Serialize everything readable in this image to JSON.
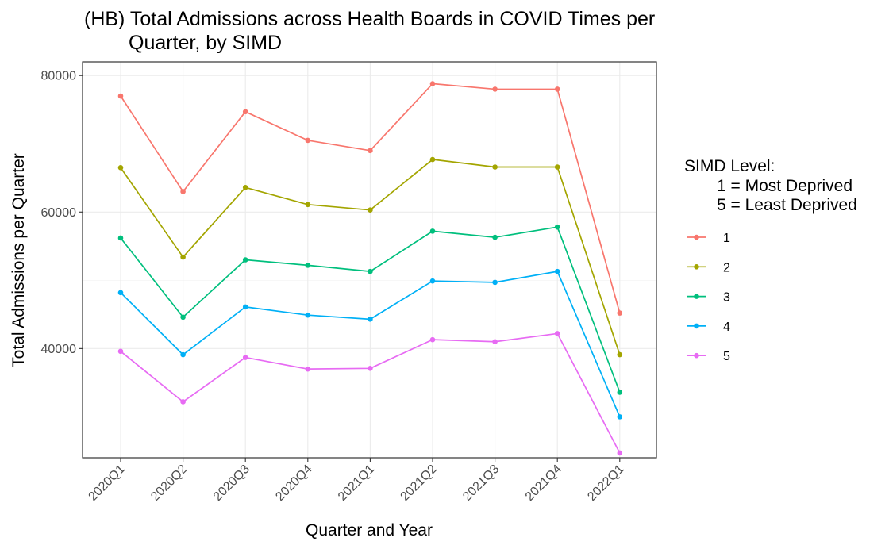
{
  "chart_data": {
    "type": "line",
    "title_line1": "(HB) Total Admissions across Health Boards in COVID Times per",
    "title_line2": "Quarter, by SIMD",
    "xlabel": "Quarter and Year",
    "ylabel": "Total Admissions per Quarter",
    "categories": [
      "2020Q1",
      "2020Q2",
      "2020Q3",
      "2020Q4",
      "2021Q1",
      "2021Q2",
      "2021Q3",
      "2021Q4",
      "2022Q1"
    ],
    "ylim": [
      24000,
      82000
    ],
    "yticks": [
      40000,
      60000,
      80000
    ],
    "ytick_labels": [
      "40000",
      "60000",
      "80000"
    ],
    "grid": true,
    "legend": {
      "position": "right",
      "title_line1": "SIMD Level:",
      "title_line2": "1 = Most Deprived",
      "title_line3": "5 = Least Deprived"
    },
    "series": [
      {
        "name": "1",
        "color": "#F8766D",
        "values": [
          77000,
          63000,
          74700,
          70500,
          69000,
          78800,
          78000,
          78000,
          45200
        ]
      },
      {
        "name": "2",
        "color": "#A3A500",
        "values": [
          66500,
          53400,
          63600,
          61100,
          60300,
          67700,
          66600,
          66600,
          39100
        ]
      },
      {
        "name": "3",
        "color": "#00BF7D",
        "values": [
          56200,
          44600,
          53000,
          52200,
          51300,
          57200,
          56300,
          57800,
          33600
        ]
      },
      {
        "name": "4",
        "color": "#00B0F6",
        "values": [
          48200,
          39100,
          46100,
          44900,
          44300,
          49900,
          49700,
          51300,
          30000
        ]
      },
      {
        "name": "5",
        "color": "#E76BF3",
        "values": [
          39600,
          32200,
          38700,
          37000,
          37100,
          41300,
          41000,
          42200,
          24700
        ]
      }
    ]
  }
}
